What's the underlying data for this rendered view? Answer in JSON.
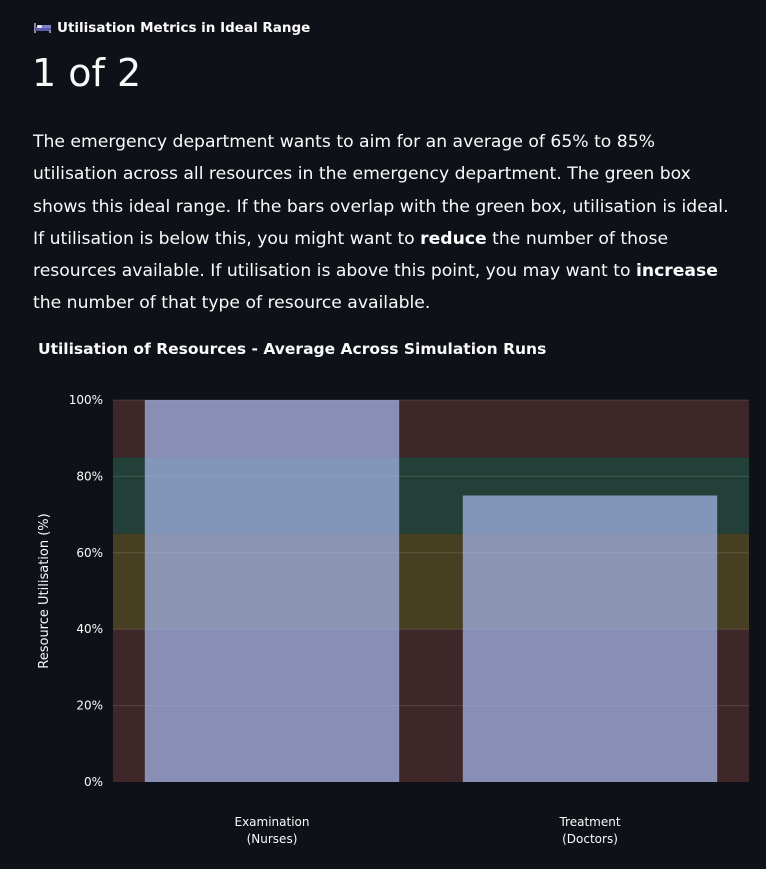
{
  "metric": {
    "label": "Utilisation Metrics in Ideal Range",
    "icon": "bed-icon",
    "value": "1 of 2"
  },
  "body": {
    "text_1": "The emergency department wants to aim for an average of 65% to 85% utilisation across all resources in the emergency department. The green box shows this ideal range. If the bars overlap with the green box, utilisation is ideal. If utilisation is below this, you might want to ",
    "bold_1": "reduce",
    "text_2": " the number of those resources available. If utilisation is above this point, you may want to ",
    "bold_2": "increase",
    "text_3": " the number of that type of resource available."
  },
  "chart_data": {
    "type": "bar",
    "title": "Utilisation of Resources - Average Across Simulation Runs",
    "xlabel": "",
    "ylabel": "Resource Utilisation (%)",
    "categories": [
      {
        "line1": "Examination",
        "line2": "(Nurses)"
      },
      {
        "line1": "Treatment",
        "line2": "(Doctors)"
      }
    ],
    "values": [
      100,
      75
    ],
    "ylim": [
      0,
      100
    ],
    "yticks": [
      0,
      20,
      40,
      60,
      80,
      100
    ],
    "ytick_labels": [
      "0%",
      "20%",
      "40%",
      "60%",
      "80%",
      "100%"
    ],
    "bands": [
      {
        "from": 0,
        "to": 40,
        "color": "#3f2628"
      },
      {
        "from": 40,
        "to": 65,
        "color": "#463f22"
      },
      {
        "from": 65,
        "to": 85,
        "color": "#224037"
      },
      {
        "from": 85,
        "to": 100,
        "color": "#3f2628"
      }
    ],
    "bar_color": "#a6b7eb",
    "grid": true,
    "legend": "none"
  }
}
